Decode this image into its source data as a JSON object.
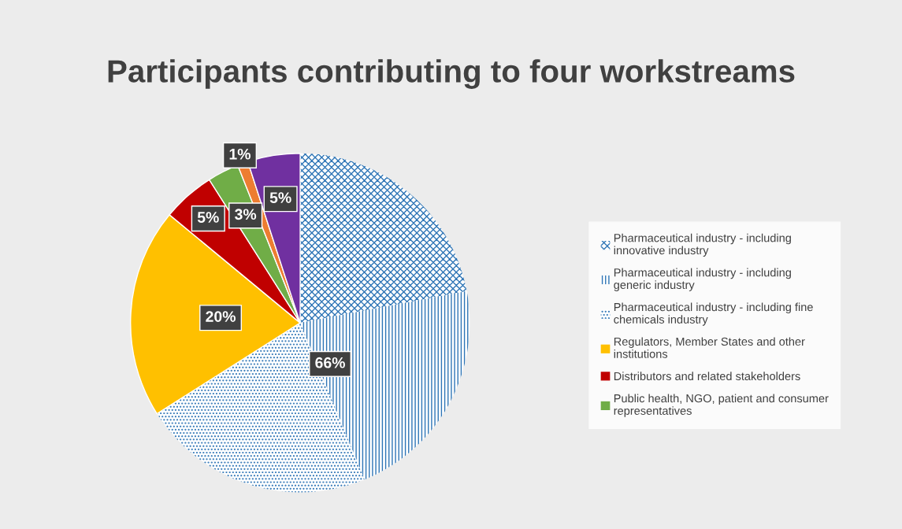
{
  "chart_data": {
    "type": "pie",
    "title": "Participants contributing to four workstreams",
    "categories": [
      "Pharmaceutical industry - including innovative industry",
      "Pharmaceutical industry - including generic industry",
      "Pharmaceutical industry - including fine chemicals industry",
      "Regulators, Member States and other institutions",
      "Distributors and related stakeholders",
      "Public health, NGO, patient and consumer representatives",
      null,
      null
    ],
    "values": [
      22.0,
      21.8,
      22.2,
      20,
      5,
      3,
      1,
      5
    ],
    "colors": [
      "#2e75b6",
      "#2e75b6",
      "#2e75b6",
      "#ffc000",
      "#c00000",
      "#70ad47",
      "#ed7d31",
      "#7030a0"
    ],
    "value_labels": [
      null,
      null,
      null,
      "20%",
      "5%",
      "3%",
      "1%",
      "5%"
    ],
    "annotations": [
      "66%"
    ],
    "legend": "right"
  }
}
